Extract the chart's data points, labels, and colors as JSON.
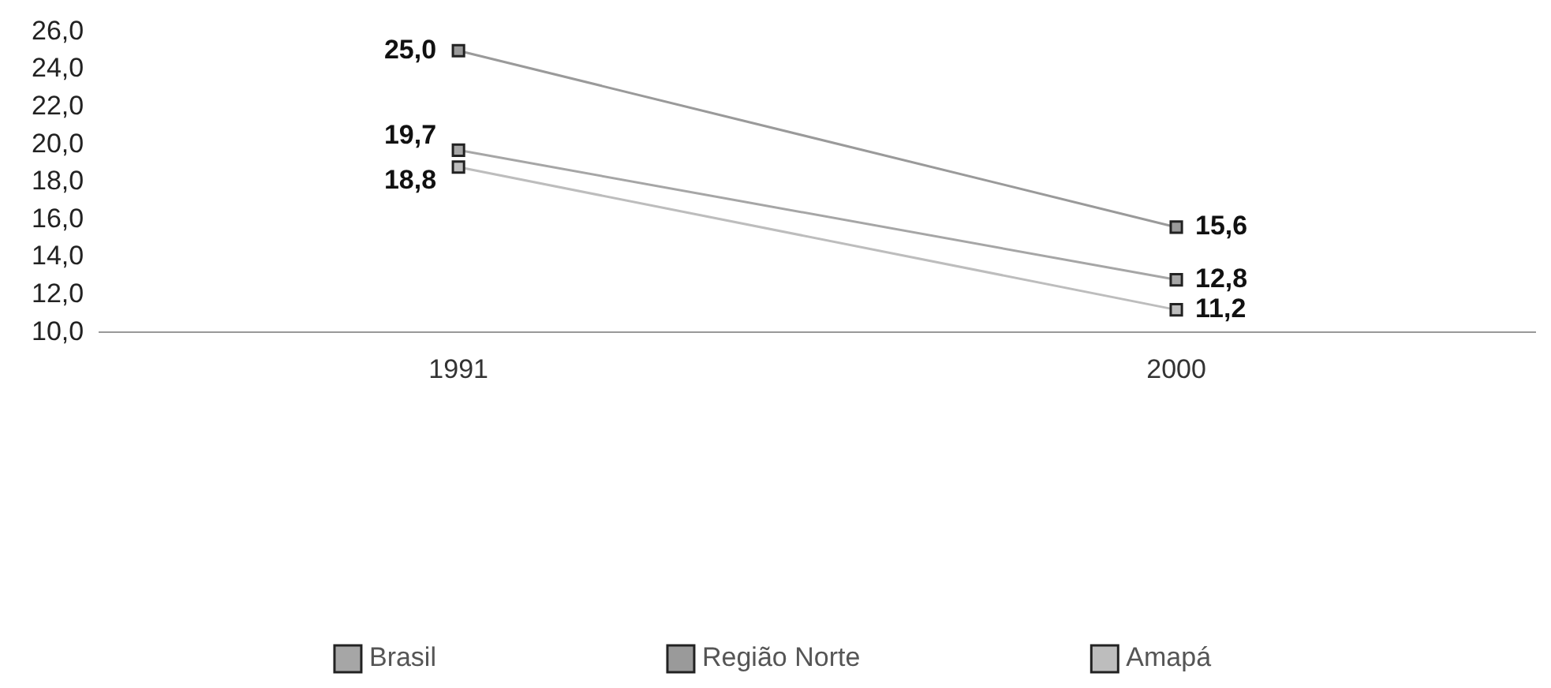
{
  "chart_data": {
    "type": "line",
    "categories": [
      "1991",
      "2000"
    ],
    "series": [
      {
        "name": "Brasil",
        "color": "#a6a6a6",
        "values": [
          19.7,
          12.8
        ],
        "value_labels": [
          "19,7",
          "12,8"
        ]
      },
      {
        "name": "Região Norte",
        "color": "#9a9a9a",
        "values": [
          25.0,
          15.6
        ],
        "value_labels": [
          "25,0",
          "15,6"
        ]
      },
      {
        "name": "Amapá",
        "color": "#bdbdbd",
        "values": [
          18.8,
          11.2
        ],
        "value_labels": [
          "18,8",
          "11,2"
        ]
      }
    ],
    "ylim": [
      10,
      26
    ],
    "yticks": [
      {
        "value": 10,
        "label": "10,0"
      },
      {
        "value": 12,
        "label": "12,0"
      },
      {
        "value": 14,
        "label": "14,0"
      },
      {
        "value": 16,
        "label": "16,0"
      },
      {
        "value": 18,
        "label": "18,0"
      },
      {
        "value": 20,
        "label": "20,0"
      },
      {
        "value": 22,
        "label": "22,0"
      },
      {
        "value": 24,
        "label": "24,0"
      },
      {
        "value": 26,
        "label": "26,0"
      }
    ],
    "grid": false,
    "legend": "bottom",
    "marker": "square",
    "line_style": "solid"
  }
}
